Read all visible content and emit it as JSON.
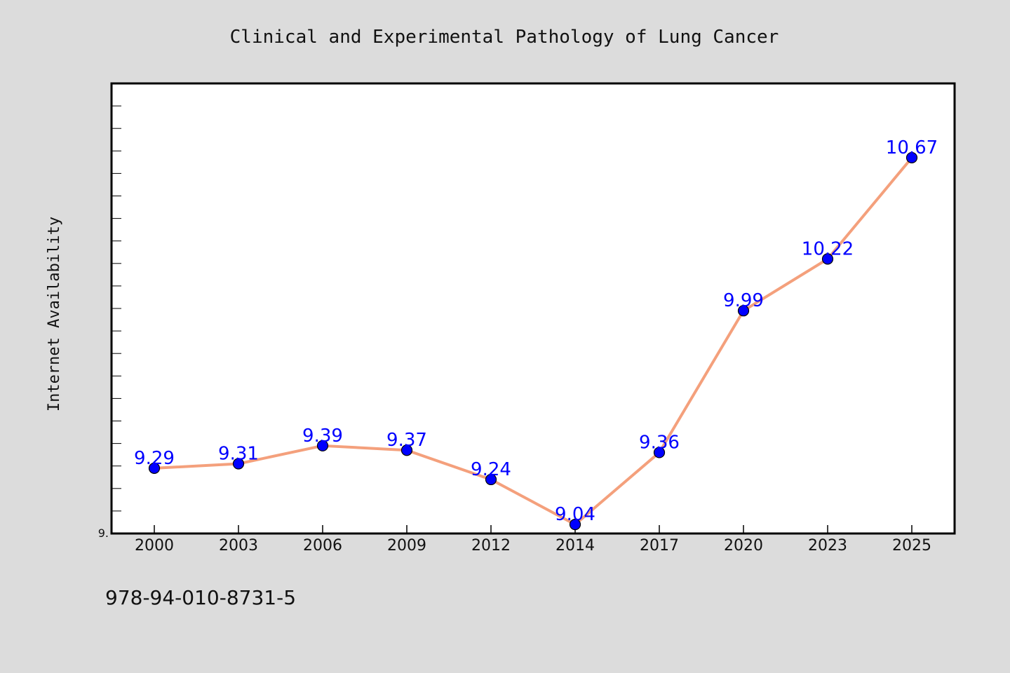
{
  "chart_data": {
    "type": "line",
    "title": "Clinical and Experimental Pathology of Lung Cancer",
    "xlabel": "",
    "ylabel": "Internet Availability",
    "categories": [
      "2000",
      "2003",
      "2006",
      "2009",
      "2012",
      "2014",
      "2017",
      "2020",
      "2023",
      "2025"
    ],
    "values": [
      9.29,
      9.31,
      9.39,
      9.37,
      9.24,
      9.04,
      9.36,
      9.99,
      10.22,
      10.67
    ],
    "data_labels": [
      "9.29",
      "9.31",
      "9.39",
      "9.37",
      "9.24",
      "9.04",
      "9.36",
      "9.99",
      "10.22",
      "10.67"
    ],
    "ylim": [
      9.0,
      11.0
    ],
    "y_tick_label": "9.",
    "grid": false,
    "legend": "none",
    "colors": {
      "line": "#f4a07c",
      "marker": "#0000ff",
      "data_label": "#0000ff",
      "background": "#dcdcdc",
      "plot_background": "#ffffff"
    }
  },
  "footer_text": "978-94-010-8731-5"
}
